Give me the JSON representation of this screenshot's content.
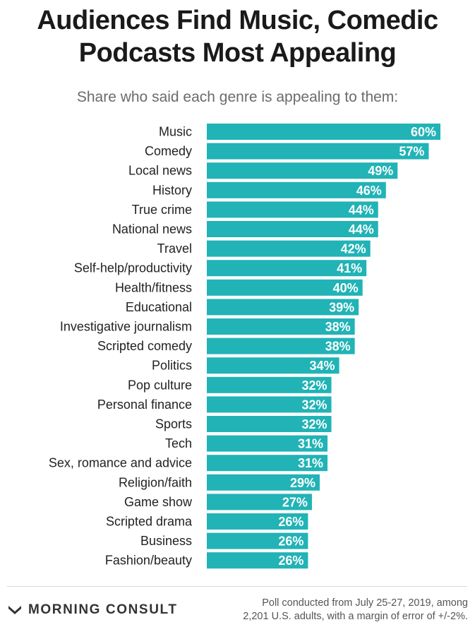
{
  "header": {
    "title_line1": "Audiences Find Music, Comedic",
    "title_line2": "Podcasts Most Appealing",
    "subtitle": "Share who said each genre is appealing to them:"
  },
  "colors": {
    "bar": "#21b3b6",
    "value_text": "#ffffff"
  },
  "chart_data": {
    "type": "bar",
    "orientation": "horizontal",
    "title": "Audiences Find Music, Comedic Podcasts Most Appealing",
    "subtitle": "Share who said each genre is appealing to them:",
    "value_suffix": "%",
    "xlim": [
      0,
      60
    ],
    "grid": false,
    "categories": [
      "Music",
      "Comedy",
      "Local news",
      "History",
      "True crime",
      "National news",
      "Travel",
      "Self-help/productivity",
      "Health/fitness",
      "Educational",
      "Investigative journalism",
      "Scripted comedy",
      "Politics",
      "Pop culture",
      "Personal finance",
      "Sports",
      "Tech",
      "Sex, romance and advice",
      "Religion/faith",
      "Game show",
      "Scripted drama",
      "Business",
      "Fashion/beauty"
    ],
    "values": [
      60,
      57,
      49,
      46,
      44,
      44,
      42,
      41,
      40,
      39,
      38,
      38,
      34,
      32,
      32,
      32,
      31,
      31,
      29,
      27,
      26,
      26,
      26
    ]
  },
  "footer": {
    "logo_text": "MORNING CONSULT",
    "logo_icon": "morning-consult-logo-icon",
    "source_line1": "Poll conducted from July 25-27, 2019, among",
    "source_line2": "2,201 U.S. adults, with a margin of error of +/-2%."
  }
}
